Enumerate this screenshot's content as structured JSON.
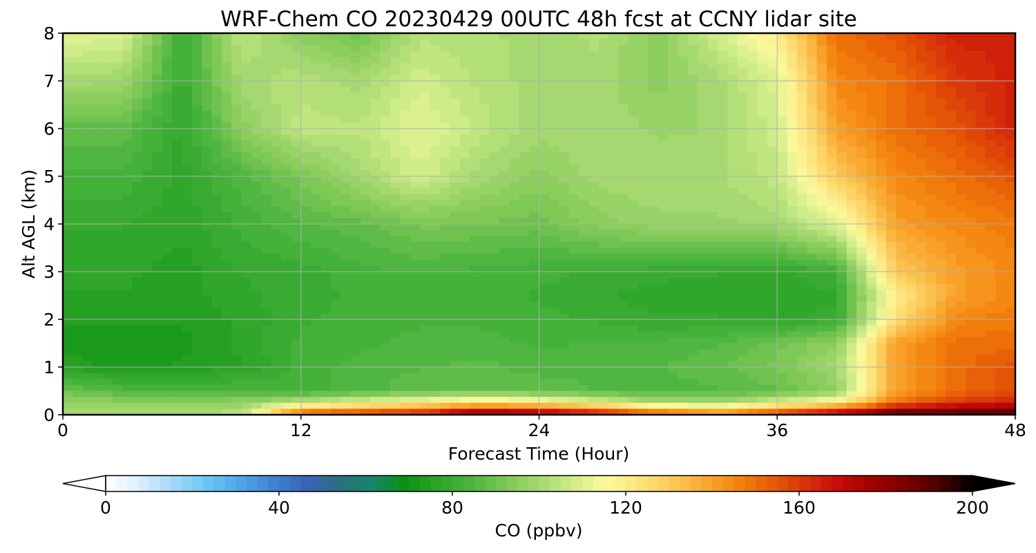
{
  "chart_data": {
    "type": "heatmap",
    "title": "WRF-Chem CO  20230429 00UTC 48h fcst at CCNY lidar site",
    "xlabel": "Forecast Time (Hour)",
    "ylabel": "Alt AGL (km)",
    "xlim": [
      0,
      48
    ],
    "ylim": [
      0,
      8
    ],
    "x_ticks": [
      0,
      12,
      24,
      36,
      48
    ],
    "y_ticks": [
      0,
      1,
      2,
      3,
      4,
      5,
      6,
      7,
      8
    ],
    "grid": true,
    "x": [
      0,
      3,
      6,
      9,
      12,
      15,
      18,
      21,
      24,
      27,
      30,
      33,
      36,
      39,
      42,
      45,
      48
    ],
    "y": [
      0,
      0.25,
      0.5,
      1,
      1.5,
      2,
      2.5,
      3,
      4,
      5,
      6,
      7,
      8
    ],
    "values": [
      [
        100,
        100,
        102,
        103,
        158,
        165,
        170,
        190,
        185,
        175,
        160,
        150,
        165,
        180,
        195,
        195,
        195
      ],
      [
        98,
        96,
        96,
        97,
        105,
        112,
        118,
        125,
        120,
        112,
        100,
        100,
        110,
        120,
        150,
        160,
        165
      ],
      [
        90,
        85,
        83,
        85,
        82,
        85,
        88,
        89,
        88,
        86,
        85,
        86,
        88,
        95,
        140,
        150,
        155
      ],
      [
        75,
        73,
        74,
        76,
        82,
        85,
        86,
        87,
        85,
        86,
        86,
        88,
        92,
        100,
        140,
        150,
        155
      ],
      [
        73,
        72,
        73,
        77,
        82,
        83,
        85,
        85,
        83,
        84,
        84,
        86,
        90,
        96,
        140,
        150,
        150
      ],
      [
        74,
        74,
        74,
        77,
        81,
        82,
        83,
        83,
        82,
        81,
        79,
        79,
        78,
        80,
        125,
        145,
        148
      ],
      [
        76,
        76,
        75,
        78,
        80,
        82,
        82,
        82,
        81,
        79,
        77,
        77,
        76,
        78,
        120,
        140,
        145
      ],
      [
        77,
        77,
        75,
        79,
        80,
        83,
        84,
        83,
        82,
        81,
        80,
        79,
        78,
        82,
        130,
        140,
        145
      ],
      [
        79,
        79,
        77,
        82,
        86,
        88,
        92,
        91,
        90,
        95,
        98,
        98,
        100,
        110,
        140,
        145,
        148
      ],
      [
        83,
        83,
        78,
        85,
        92,
        100,
        108,
        100,
        95,
        100,
        101,
        101,
        105,
        130,
        145,
        150,
        155
      ],
      [
        88,
        88,
        78,
        95,
        105,
        104,
        112,
        105,
        100,
        101,
        98,
        99,
        108,
        140,
        150,
        155,
        165
      ],
      [
        100,
        99,
        80,
        100,
        103,
        100,
        108,
        103,
        100,
        100,
        95,
        100,
        110,
        145,
        150,
        160,
        165
      ],
      [
        112,
        110,
        80,
        104,
        95,
        90,
        103,
        102,
        100,
        102,
        95,
        108,
        120,
        150,
        155,
        165,
        165
      ]
    ],
    "colorbar": {
      "label": "CO  (ppbv)",
      "min": 0,
      "max": 200,
      "ticks": [
        0,
        40,
        80,
        120,
        160,
        200
      ],
      "extend": "both",
      "colors": [
        "#ffffff",
        "#dcefff",
        "#a5d8fa",
        "#6cc7f4",
        "#4fa7e6",
        "#3f82d2",
        "#3a63b8",
        "#2b6f7f",
        "#17856a",
        "#0c9010",
        "#2ea528",
        "#4db540",
        "#7dc855",
        "#a5d870",
        "#cfec8a",
        "#fbfa9c",
        "#fce27c",
        "#fcc957",
        "#f9a730",
        "#f3830c",
        "#e65a05",
        "#d7320a",
        "#c50a0a",
        "#a30000",
        "#7a0000",
        "#4a0000",
        "#000000"
      ]
    }
  }
}
